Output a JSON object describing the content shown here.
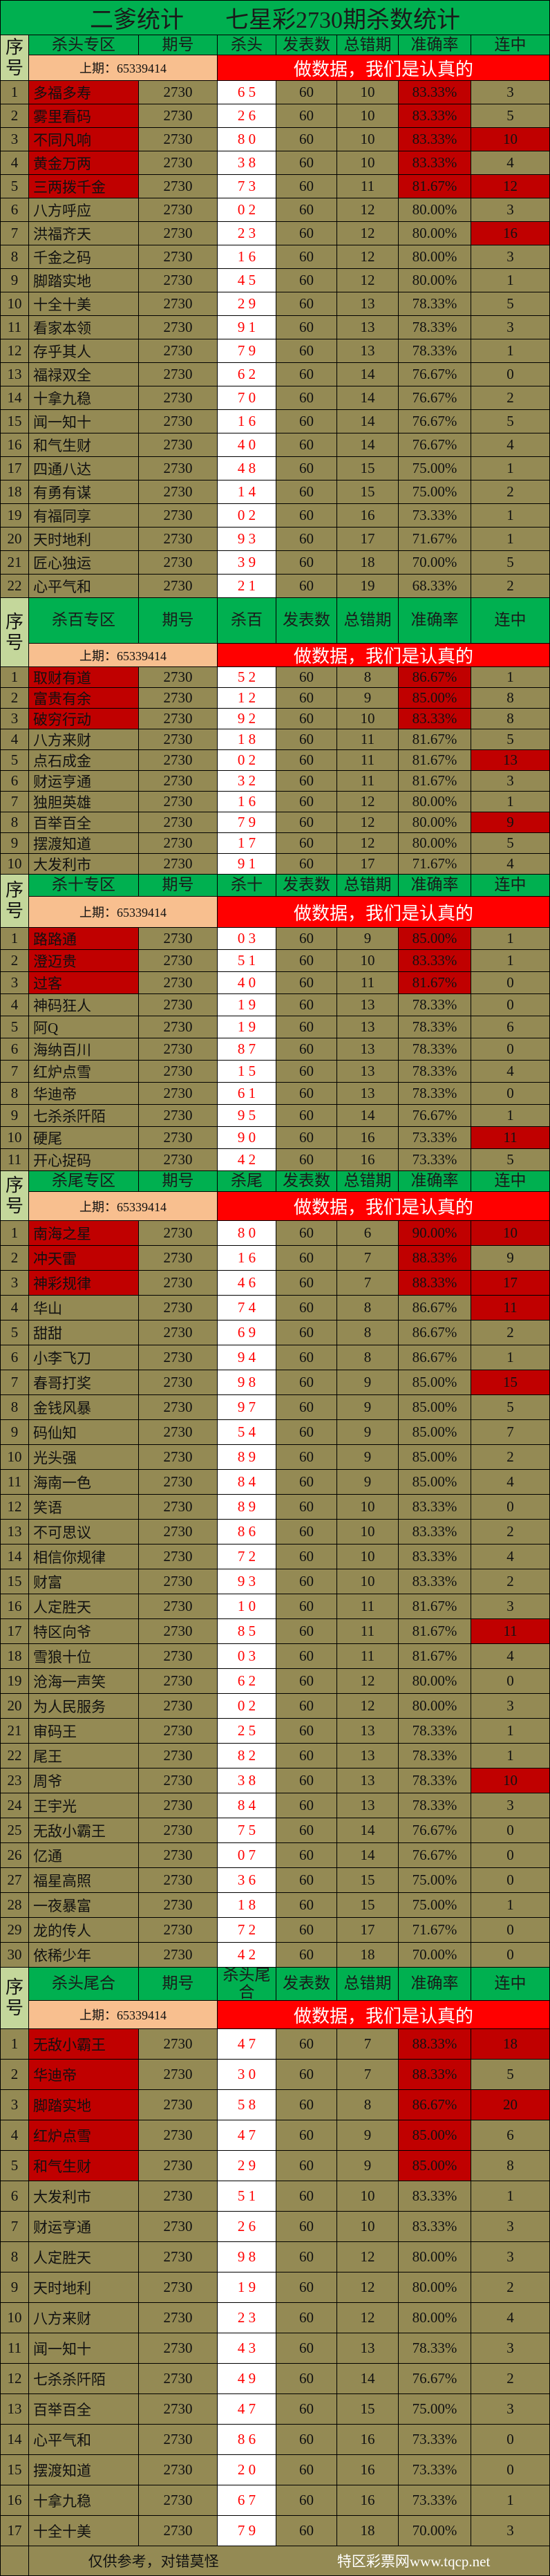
{
  "title": {
    "left": "二爹统计",
    "right": "七星彩2730期杀数统计"
  },
  "common": {
    "index_label": "序号",
    "period_label": "期号",
    "posts_label": "发表数",
    "errors_label": "总错期",
    "accuracy_label": "准确率",
    "streak_label": "连中",
    "last_period": "上期：65339414",
    "slogan": "做数据，我们是认真的"
  },
  "colors": {
    "green": "#00b050",
    "olive": "#948a54",
    "dark_red": "#c00000",
    "red": "#ff0000",
    "peach": "#f8bf8f",
    "light_green": "#c4d79b"
  },
  "sections": [
    {
      "zone_label": "杀头专区",
      "kill_label": "杀头",
      "top_highlight_count": 5,
      "streak_highlight_rows": [
        3,
        5,
        7
      ],
      "rows": [
        [
          "1",
          "多福多寿",
          "2730",
          "6 5",
          "60",
          "10",
          "83.33%",
          "3"
        ],
        [
          "2",
          "雾里看码",
          "2730",
          "2 6",
          "60",
          "10",
          "83.33%",
          "5"
        ],
        [
          "3",
          "不同凡响",
          "2730",
          "8 0",
          "60",
          "10",
          "83.33%",
          "10"
        ],
        [
          "4",
          "黄金万两",
          "2730",
          "3 8",
          "60",
          "10",
          "83.33%",
          "4"
        ],
        [
          "5",
          "三两拨千金",
          "2730",
          "7 3",
          "60",
          "11",
          "81.67%",
          "12"
        ],
        [
          "6",
          "八方呼应",
          "2730",
          "0 2",
          "60",
          "12",
          "80.00%",
          "3"
        ],
        [
          "7",
          "洪福齐天",
          "2730",
          "2 3",
          "60",
          "12",
          "80.00%",
          "16"
        ],
        [
          "8",
          "千金之码",
          "2730",
          "1 6",
          "60",
          "12",
          "80.00%",
          "3"
        ],
        [
          "9",
          "脚踏实地",
          "2730",
          "4 5",
          "60",
          "12",
          "80.00%",
          "1"
        ],
        [
          "10",
          "十全十美",
          "2730",
          "2 9",
          "60",
          "13",
          "78.33%",
          "5"
        ],
        [
          "11",
          "看家本领",
          "2730",
          "9 1",
          "60",
          "13",
          "78.33%",
          "3"
        ],
        [
          "12",
          "存乎其人",
          "2730",
          "7 9",
          "60",
          "13",
          "78.33%",
          "1"
        ],
        [
          "13",
          "福禄双全",
          "2730",
          "6 2",
          "60",
          "14",
          "76.67%",
          "0"
        ],
        [
          "14",
          "十拿九稳",
          "2730",
          "7 0",
          "60",
          "14",
          "76.67%",
          "2"
        ],
        [
          "15",
          "闻一知十",
          "2730",
          "1 6",
          "60",
          "14",
          "76.67%",
          "5"
        ],
        [
          "16",
          "和气生财",
          "2730",
          "4 0",
          "60",
          "14",
          "76.67%",
          "4"
        ],
        [
          "17",
          "四通八达",
          "2730",
          "4 8",
          "60",
          "15",
          "75.00%",
          "1"
        ],
        [
          "18",
          "有勇有谋",
          "2730",
          "1 4",
          "60",
          "15",
          "75.00%",
          "2"
        ],
        [
          "19",
          "有福同享",
          "2730",
          "0 2",
          "60",
          "16",
          "73.33%",
          "1"
        ],
        [
          "20",
          "天时地利",
          "2730",
          "9 3",
          "60",
          "17",
          "71.67%",
          "1"
        ],
        [
          "21",
          "匠心独运",
          "2730",
          "3 9",
          "60",
          "18",
          "70.00%",
          "5"
        ],
        [
          "22",
          "心平气和",
          "2730",
          "2 1",
          "60",
          "19",
          "68.33%",
          "2"
        ]
      ]
    },
    {
      "zone_label": "杀百专区",
      "kill_label": "杀百",
      "top_highlight_count": 3,
      "streak_highlight_rows": [
        5,
        8
      ],
      "rows": [
        [
          "1",
          "取财有道",
          "2730",
          "5 2",
          "60",
          "8",
          "86.67%",
          "1"
        ],
        [
          "2",
          "富贵有余",
          "2730",
          "1 2",
          "60",
          "9",
          "85.00%",
          "8"
        ],
        [
          "3",
          "破穷行动",
          "2730",
          "9 2",
          "60",
          "10",
          "83.33%",
          "8"
        ],
        [
          "4",
          "八方来财",
          "2730",
          "1 8",
          "60",
          "11",
          "81.67%",
          "5"
        ],
        [
          "5",
          "点石成金",
          "2730",
          "0 2",
          "60",
          "11",
          "81.67%",
          "13"
        ],
        [
          "6",
          "财运亨通",
          "2730",
          "3 2",
          "60",
          "11",
          "81.67%",
          "3"
        ],
        [
          "7",
          "独胆英雄",
          "2730",
          "1 6",
          "60",
          "12",
          "80.00%",
          "1"
        ],
        [
          "8",
          "百举百全",
          "2730",
          "7 9",
          "60",
          "12",
          "80.00%",
          "9"
        ],
        [
          "9",
          "摆渡知道",
          "2730",
          "1 7",
          "60",
          "12",
          "80.00%",
          "5"
        ],
        [
          "10",
          "大发利市",
          "2730",
          "9 1",
          "60",
          "17",
          "71.67%",
          "4"
        ]
      ]
    },
    {
      "zone_label": "杀十专区",
      "kill_label": "杀十",
      "top_highlight_count": 3,
      "streak_highlight_rows": [
        10
      ],
      "rows": [
        [
          "1",
          "路路通",
          "2730",
          "0 3",
          "60",
          "9",
          "85.00%",
          "1"
        ],
        [
          "2",
          "澄迈贵",
          "2730",
          "5 1",
          "60",
          "10",
          "83.33%",
          "1"
        ],
        [
          "3",
          "过客",
          "2730",
          "4 0",
          "60",
          "11",
          "81.67%",
          "0"
        ],
        [
          "4",
          "神码狂人",
          "2730",
          "1 9",
          "60",
          "13",
          "78.33%",
          "0"
        ],
        [
          "5",
          "阿Q",
          "2730",
          "1 9",
          "60",
          "13",
          "78.33%",
          "6"
        ],
        [
          "6",
          "海纳百川",
          "2730",
          "8 7",
          "60",
          "13",
          "78.33%",
          "0"
        ],
        [
          "7",
          "红炉点雪",
          "2730",
          "1 5",
          "60",
          "13",
          "78.33%",
          "4"
        ],
        [
          "8",
          "华迪帝",
          "2730",
          "6 1",
          "60",
          "13",
          "78.33%",
          "0"
        ],
        [
          "9",
          "七杀杀阡陌",
          "2730",
          "9 5",
          "60",
          "14",
          "76.67%",
          "1"
        ],
        [
          "10",
          "硬尾",
          "2730",
          "9 0",
          "60",
          "16",
          "73.33%",
          "11"
        ],
        [
          "11",
          "开心捉码",
          "2730",
          "4 2",
          "60",
          "16",
          "73.33%",
          "5"
        ]
      ]
    },
    {
      "zone_label": "杀尾专区",
      "kill_label": "杀尾",
      "top_highlight_count": 3,
      "streak_highlight_rows": [
        1,
        3,
        4,
        7,
        17,
        23
      ],
      "rows": [
        [
          "1",
          "南海之星",
          "2730",
          "8 0",
          "60",
          "6",
          "90.00%",
          "10"
        ],
        [
          "2",
          "冲天雷",
          "2730",
          "1 6",
          "60",
          "7",
          "88.33%",
          "9"
        ],
        [
          "3",
          "神彩规律",
          "2730",
          "4 6",
          "60",
          "7",
          "88.33%",
          "17"
        ],
        [
          "4",
          "华山",
          "2730",
          "7 4",
          "60",
          "8",
          "86.67%",
          "11"
        ],
        [
          "5",
          "甜甜",
          "2730",
          "6 9",
          "60",
          "8",
          "86.67%",
          "2"
        ],
        [
          "6",
          "小李飞刀",
          "2730",
          "9 4",
          "60",
          "8",
          "86.67%",
          "1"
        ],
        [
          "7",
          "春哥打奖",
          "2730",
          "9 8",
          "60",
          "9",
          "85.00%",
          "15"
        ],
        [
          "8",
          "金钱风暴",
          "2730",
          "9 7",
          "60",
          "9",
          "85.00%",
          "5"
        ],
        [
          "9",
          "码仙知",
          "2730",
          "5 4",
          "60",
          "9",
          "85.00%",
          "7"
        ],
        [
          "10",
          "光头强",
          "2730",
          "8 9",
          "60",
          "9",
          "85.00%",
          "2"
        ],
        [
          "11",
          "海南一色",
          "2730",
          "8 4",
          "60",
          "9",
          "85.00%",
          "4"
        ],
        [
          "12",
          "笑语",
          "2730",
          "8 9",
          "60",
          "10",
          "83.33%",
          "0"
        ],
        [
          "13",
          "不可思议",
          "2730",
          "8 6",
          "60",
          "10",
          "83.33%",
          "2"
        ],
        [
          "14",
          "相信你规律",
          "2730",
          "7 2",
          "60",
          "10",
          "83.33%",
          "4"
        ],
        [
          "15",
          "财富",
          "2730",
          "9 3",
          "60",
          "10",
          "83.33%",
          "2"
        ],
        [
          "16",
          "人定胜天",
          "2730",
          "1 0",
          "60",
          "11",
          "81.67%",
          "3"
        ],
        [
          "17",
          "特区向爷",
          "2730",
          "8 5",
          "60",
          "11",
          "81.67%",
          "11"
        ],
        [
          "18",
          "雪狼十位",
          "2730",
          "0 3",
          "60",
          "11",
          "81.67%",
          "4"
        ],
        [
          "19",
          "沧海一声笑",
          "2730",
          "6 2",
          "60",
          "12",
          "80.00%",
          "0"
        ],
        [
          "20",
          "为人民服务",
          "2730",
          "0 2",
          "60",
          "12",
          "80.00%",
          "3"
        ],
        [
          "21",
          "审码王",
          "2730",
          "2 5",
          "60",
          "13",
          "78.33%",
          "1"
        ],
        [
          "22",
          "尾王",
          "2730",
          "8 2",
          "60",
          "13",
          "78.33%",
          "1"
        ],
        [
          "23",
          "周爷",
          "2730",
          "3 8",
          "60",
          "13",
          "78.33%",
          "10"
        ],
        [
          "24",
          "王宇光",
          "2730",
          "8 4",
          "60",
          "13",
          "78.33%",
          "3"
        ],
        [
          "25",
          "无敌小霸王",
          "2730",
          "7 5",
          "60",
          "14",
          "76.67%",
          "0"
        ],
        [
          "26",
          "亿通",
          "2730",
          "0 7",
          "60",
          "14",
          "76.67%",
          "0"
        ],
        [
          "27",
          "福星高照",
          "2730",
          "3 6",
          "60",
          "15",
          "75.00%",
          "0"
        ],
        [
          "28",
          "一夜暴富",
          "2730",
          "1 8",
          "60",
          "15",
          "75.00%",
          "1"
        ],
        [
          "29",
          "龙的传人",
          "2730",
          "7 2",
          "60",
          "17",
          "71.67%",
          "0"
        ],
        [
          "30",
          "依稀少年",
          "2730",
          "4 2",
          "60",
          "18",
          "70.00%",
          "0"
        ]
      ]
    },
    {
      "zone_label": "杀头尾合",
      "kill_label": "杀头尾合",
      "top_highlight_count": 5,
      "streak_highlight_rows": [
        1,
        3
      ],
      "rows": [
        [
          "1",
          "无敌小霸王",
          "2730",
          "4 7",
          "60",
          "7",
          "88.33%",
          "18"
        ],
        [
          "2",
          "华迪帝",
          "2730",
          "3 0",
          "60",
          "7",
          "88.33%",
          "5"
        ],
        [
          "3",
          "脚踏实地",
          "2730",
          "5 8",
          "60",
          "8",
          "86.67%",
          "20"
        ],
        [
          "4",
          "红炉点雪",
          "2730",
          "4 7",
          "60",
          "9",
          "85.00%",
          "6"
        ],
        [
          "5",
          "和气生财",
          "2730",
          "2 9",
          "60",
          "9",
          "85.00%",
          "8"
        ],
        [
          "6",
          "大发利市",
          "2730",
          "5 1",
          "60",
          "10",
          "83.33%",
          "1"
        ],
        [
          "7",
          "财运亨通",
          "2730",
          "2 6",
          "60",
          "10",
          "83.33%",
          "3"
        ],
        [
          "8",
          "人定胜天",
          "2730",
          "9 8",
          "60",
          "12",
          "80.00%",
          "3"
        ],
        [
          "9",
          "天时地利",
          "2730",
          "1 9",
          "60",
          "12",
          "80.00%",
          "2"
        ],
        [
          "10",
          "八方来财",
          "2730",
          "2 3",
          "60",
          "12",
          "80.00%",
          "4"
        ],
        [
          "11",
          "闻一知十",
          "2730",
          "4 3",
          "60",
          "13",
          "78.33%",
          "3"
        ],
        [
          "12",
          "七杀杀阡陌",
          "2730",
          "4 9",
          "60",
          "14",
          "76.67%",
          "2"
        ],
        [
          "13",
          "百举百全",
          "2730",
          "4 7",
          "60",
          "15",
          "75.00%",
          "3"
        ],
        [
          "14",
          "心平气和",
          "2730",
          "8 6",
          "60",
          "16",
          "73.33%",
          "0"
        ],
        [
          "15",
          "摆渡知道",
          "2730",
          "2 0",
          "60",
          "16",
          "73.33%",
          "0"
        ],
        [
          "16",
          "十拿九稳",
          "2730",
          "6 7",
          "60",
          "16",
          "73.33%",
          "1"
        ],
        [
          "17",
          "十全十美",
          "2730",
          "7 9",
          "60",
          "18",
          "70.00%",
          "3"
        ]
      ]
    }
  ],
  "footer": {
    "disclaimer": "仅供参考，对错莫怪",
    "site": "特区彩票网www.tqcp.net"
  }
}
